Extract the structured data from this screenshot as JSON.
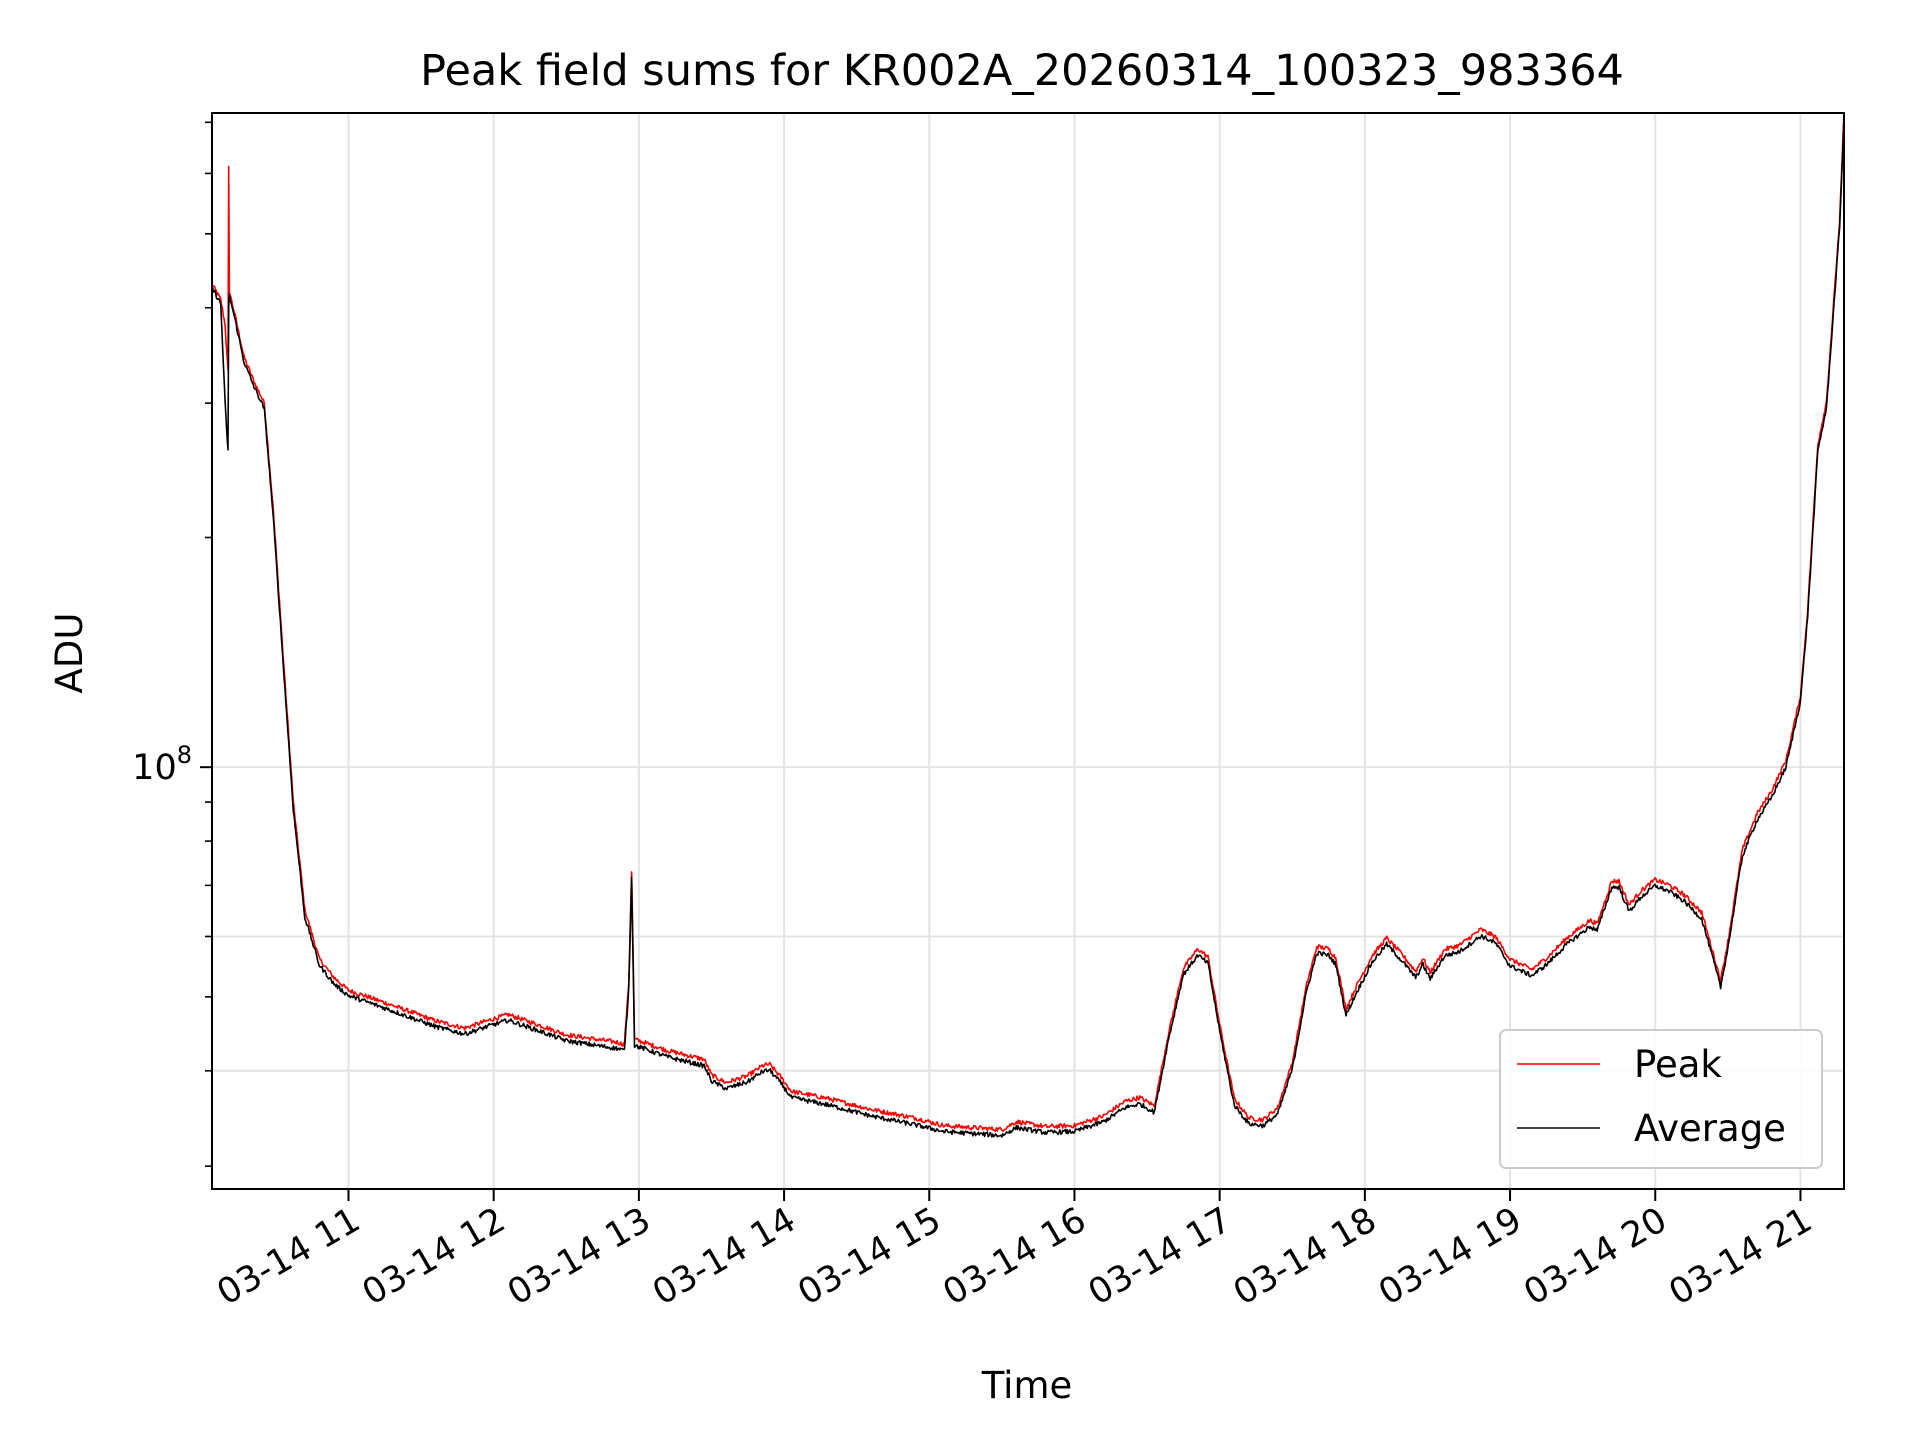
{
  "chart_data": {
    "type": "line",
    "title": "Peak field sums for KR002A_20260314_100323_983364",
    "xlabel": "Time",
    "ylabel": "ADU",
    "yscale": "log",
    "grid": true,
    "legend_position": "lower-right",
    "xlim": [
      "03-14 10:04",
      "03-14 21:18"
    ],
    "ylim": [
      28000000,
      720000000
    ],
    "x_tick_labels": [
      "03-14 11",
      "03-14 12",
      "03-14 13",
      "03-14 14",
      "03-14 15",
      "03-14 16",
      "03-14 17",
      "03-14 18",
      "03-14 19",
      "03-14 20",
      "03-14 21"
    ],
    "x_tick_hours": [
      11,
      12,
      13,
      14,
      15,
      16,
      17,
      18,
      19,
      20,
      21
    ],
    "x_start_hour": 10.06,
    "x_end_hour": 21.3,
    "y_tick_labels": [
      {
        "base": "10",
        "exp": "8",
        "value": 100000000
      }
    ],
    "y_minor_ticks": [
      30000000,
      40000000,
      50000000,
      60000000,
      70000000,
      80000000,
      90000000,
      200000000,
      300000000,
      400000000,
      500000000,
      600000000,
      700000000
    ],
    "y_grid_values": [
      40000000,
      60000000,
      100000000
    ],
    "series": [
      {
        "name": "Peak",
        "color": "#ff0000",
        "points": [
          [
            10.06,
            430000000
          ],
          [
            10.12,
            410000000
          ],
          [
            10.15,
            380000000
          ],
          [
            10.17,
            330000000
          ],
          [
            10.175,
            610000000
          ],
          [
            10.18,
            420000000
          ],
          [
            10.22,
            390000000
          ],
          [
            10.28,
            345000000
          ],
          [
            10.35,
            320000000
          ],
          [
            10.42,
            300000000
          ],
          [
            10.48,
            220000000
          ],
          [
            10.55,
            140000000
          ],
          [
            10.62,
            90000000
          ],
          [
            10.7,
            65000000
          ],
          [
            10.8,
            56000000
          ],
          [
            10.9,
            53000000
          ],
          [
            11.0,
            51000000
          ],
          [
            11.2,
            49500000
          ],
          [
            11.4,
            48000000
          ],
          [
            11.6,
            46500000
          ],
          [
            11.8,
            45500000
          ],
          [
            12.0,
            46800000
          ],
          [
            12.1,
            47400000
          ],
          [
            12.3,
            46000000
          ],
          [
            12.5,
            44600000
          ],
          [
            12.7,
            44000000
          ],
          [
            12.85,
            43600000
          ],
          [
            12.9,
            43300000
          ],
          [
            12.93,
            52000000
          ],
          [
            12.95,
            73000000
          ],
          [
            12.97,
            44000000
          ],
          [
            13.2,
            42500000
          ],
          [
            13.45,
            41400000
          ],
          [
            13.5,
            39500000
          ],
          [
            13.6,
            38600000
          ],
          [
            13.75,
            39400000
          ],
          [
            13.85,
            40600000
          ],
          [
            13.9,
            40800000
          ],
          [
            13.98,
            39200000
          ],
          [
            14.05,
            37600000
          ],
          [
            14.3,
            36800000
          ],
          [
            14.6,
            35600000
          ],
          [
            14.9,
            34700000
          ],
          [
            15.1,
            33900000
          ],
          [
            15.3,
            33700000
          ],
          [
            15.5,
            33500000
          ],
          [
            15.6,
            34300000
          ],
          [
            15.8,
            33800000
          ],
          [
            16.0,
            33900000
          ],
          [
            16.2,
            34900000
          ],
          [
            16.35,
            36500000
          ],
          [
            16.45,
            36900000
          ],
          [
            16.55,
            36000000
          ],
          [
            16.65,
            45000000
          ],
          [
            16.75,
            54500000
          ],
          [
            16.85,
            57800000
          ],
          [
            16.92,
            56400000
          ],
          [
            17.0,
            46000000
          ],
          [
            17.1,
            36800000
          ],
          [
            17.2,
            34700000
          ],
          [
            17.3,
            34500000
          ],
          [
            17.4,
            35800000
          ],
          [
            17.5,
            41000000
          ],
          [
            17.6,
            52000000
          ],
          [
            17.67,
            58200000
          ],
          [
            17.75,
            57800000
          ],
          [
            17.8,
            56200000
          ],
          [
            17.87,
            48200000
          ],
          [
            17.95,
            52000000
          ],
          [
            18.05,
            56600000
          ],
          [
            18.15,
            59700000
          ],
          [
            18.25,
            57000000
          ],
          [
            18.35,
            54000000
          ],
          [
            18.4,
            56200000
          ],
          [
            18.45,
            53800000
          ],
          [
            18.55,
            57700000
          ],
          [
            18.65,
            58400000
          ],
          [
            18.8,
            61300000
          ],
          [
            18.9,
            59900000
          ],
          [
            19.0,
            56000000
          ],
          [
            19.15,
            54300000
          ],
          [
            19.25,
            56200000
          ],
          [
            19.4,
            59900000
          ],
          [
            19.55,
            63000000
          ],
          [
            19.6,
            62300000
          ],
          [
            19.7,
            70900000
          ],
          [
            19.75,
            70900000
          ],
          [
            19.82,
            66000000
          ],
          [
            19.9,
            68800000
          ],
          [
            20.0,
            71200000
          ],
          [
            20.1,
            70000000
          ],
          [
            20.2,
            68000000
          ],
          [
            20.32,
            64500000
          ],
          [
            20.4,
            57000000
          ],
          [
            20.45,
            52500000
          ],
          [
            20.5,
            59000000
          ],
          [
            20.6,
            78000000
          ],
          [
            20.7,
            86800000
          ],
          [
            20.8,
            93000000
          ],
          [
            20.9,
            102000000
          ],
          [
            21.0,
            124000000
          ],
          [
            21.05,
            161000000
          ],
          [
            21.12,
            265000000
          ],
          [
            21.18,
            302000000
          ],
          [
            21.22,
            385000000
          ],
          [
            21.27,
            520000000
          ],
          [
            21.3,
            720000000
          ]
        ]
      },
      {
        "name": "Average",
        "color": "#000000",
        "points": [
          [
            10.06,
            425000000
          ],
          [
            10.12,
            405000000
          ],
          [
            10.15,
            300000000
          ],
          [
            10.17,
            260000000
          ],
          [
            10.175,
            400000000
          ],
          [
            10.18,
            415000000
          ],
          [
            10.22,
            385000000
          ],
          [
            10.28,
            340000000
          ],
          [
            10.35,
            315000000
          ],
          [
            10.42,
            295000000
          ],
          [
            10.48,
            215000000
          ],
          [
            10.55,
            137000000
          ],
          [
            10.62,
            88000000
          ],
          [
            10.7,
            63500000
          ],
          [
            10.8,
            55000000
          ],
          [
            10.9,
            52000000
          ],
          [
            11.0,
            50200000
          ],
          [
            11.2,
            48700000
          ],
          [
            11.4,
            47200000
          ],
          [
            11.6,
            45700000
          ],
          [
            11.8,
            44700000
          ],
          [
            12.0,
            46000000
          ],
          [
            12.1,
            46600000
          ],
          [
            12.3,
            45200000
          ],
          [
            12.5,
            43800000
          ],
          [
            12.7,
            43200000
          ],
          [
            12.85,
            42800000
          ],
          [
            12.9,
            42500000
          ],
          [
            12.93,
            51000000
          ],
          [
            12.95,
            71500000
          ],
          [
            12.97,
            43200000
          ],
          [
            13.2,
            41700000
          ],
          [
            13.45,
            40600000
          ],
          [
            13.5,
            38800000
          ],
          [
            13.6,
            37900000
          ],
          [
            13.75,
            38700000
          ],
          [
            13.85,
            39900000
          ],
          [
            13.9,
            40100000
          ],
          [
            13.98,
            38500000
          ],
          [
            14.05,
            36900000
          ],
          [
            14.3,
            36100000
          ],
          [
            14.6,
            34900000
          ],
          [
            14.9,
            34000000
          ],
          [
            15.1,
            33300000
          ],
          [
            15.3,
            33100000
          ],
          [
            15.5,
            32900000
          ],
          [
            15.6,
            33700000
          ],
          [
            15.8,
            33200000
          ],
          [
            16.0,
            33300000
          ],
          [
            16.2,
            34300000
          ],
          [
            16.35,
            35800000
          ],
          [
            16.45,
            36200000
          ],
          [
            16.55,
            35300000
          ],
          [
            16.65,
            44200000
          ],
          [
            16.75,
            53500000
          ],
          [
            16.85,
            56700000
          ],
          [
            16.92,
            55300000
          ],
          [
            17.0,
            45100000
          ],
          [
            17.1,
            36100000
          ],
          [
            17.2,
            34100000
          ],
          [
            17.3,
            33900000
          ],
          [
            17.4,
            35100000
          ],
          [
            17.5,
            40200000
          ],
          [
            17.6,
            51000000
          ],
          [
            17.67,
            57100000
          ],
          [
            17.75,
            56700000
          ],
          [
            17.8,
            55100000
          ],
          [
            17.87,
            47300000
          ],
          [
            17.95,
            51000000
          ],
          [
            18.05,
            55500000
          ],
          [
            18.15,
            58600000
          ],
          [
            18.25,
            55900000
          ],
          [
            18.35,
            53000000
          ],
          [
            18.4,
            55100000
          ],
          [
            18.45,
            52800000
          ],
          [
            18.55,
            56600000
          ],
          [
            18.65,
            57300000
          ],
          [
            18.8,
            60100000
          ],
          [
            18.9,
            58800000
          ],
          [
            19.0,
            54900000
          ],
          [
            19.15,
            53300000
          ],
          [
            19.25,
            55100000
          ],
          [
            19.4,
            58800000
          ],
          [
            19.55,
            61800000
          ],
          [
            19.6,
            61100000
          ],
          [
            19.7,
            69600000
          ],
          [
            19.75,
            69600000
          ],
          [
            19.82,
            64700000
          ],
          [
            19.9,
            67500000
          ],
          [
            20.0,
            69900000
          ],
          [
            20.1,
            68700000
          ],
          [
            20.2,
            66700000
          ],
          [
            20.32,
            63300000
          ],
          [
            20.4,
            55900000
          ],
          [
            20.45,
            51500000
          ],
          [
            20.5,
            57900000
          ],
          [
            20.6,
            76500000
          ],
          [
            20.7,
            85200000
          ],
          [
            20.8,
            91200000
          ],
          [
            20.9,
            100000000
          ],
          [
            21.0,
            122000000
          ],
          [
            21.05,
            158000000
          ],
          [
            21.12,
            260000000
          ],
          [
            21.18,
            296000000
          ],
          [
            21.22,
            378000000
          ],
          [
            21.27,
            510000000
          ],
          [
            21.3,
            710000000
          ]
        ]
      }
    ]
  }
}
